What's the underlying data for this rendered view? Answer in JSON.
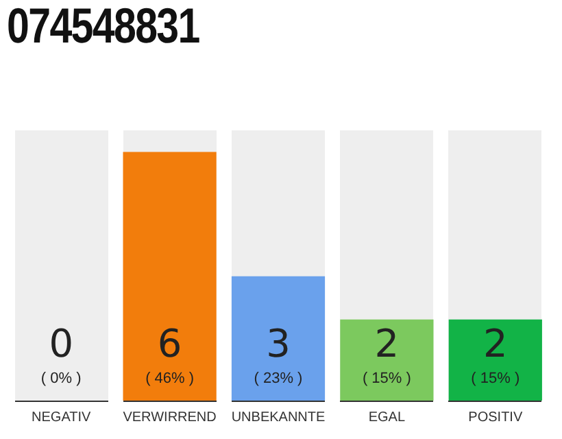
{
  "chart_data": {
    "type": "bar",
    "title": "074548831",
    "categories": [
      "NEGATIV",
      "VERWIRREND",
      "UNBEKANNTE",
      "EGAL",
      "POSITIV"
    ],
    "values": [
      0,
      46,
      23,
      15,
      15
    ],
    "colors": [
      "#eeeeee",
      "#f27d0c",
      "#6aa1ec",
      "#7cc95e",
      "#12b347"
    ],
    "tick_labels": "x",
    "grid": false,
    "legend": false,
    "value_labels": [
      "( 0% )",
      "( 46% )",
      "( 23% )",
      "( 15% )",
      "( 15% )"
    ],
    "annotations": [
      "0",
      "6",
      "3",
      "2",
      "2"
    ]
  }
}
